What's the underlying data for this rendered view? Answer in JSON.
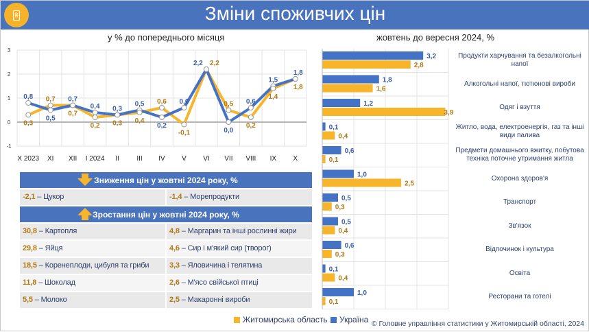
{
  "header": {
    "title": "Зміни споживчих цін",
    "icon": "price-tag-hryvnia-icon"
  },
  "colors": {
    "ukraine": "#4472c4",
    "zhytomyr": "#f7b52c",
    "header": "#4a73be"
  },
  "chart_data": [
    {
      "type": "line",
      "title": "у % до попереднього місяця",
      "ylim": [
        -1,
        3
      ],
      "yticks": [
        "3",
        "2",
        "1",
        "0",
        "-1"
      ],
      "categories": [
        "X 2023",
        "XI",
        "XII",
        "I 2024",
        "II",
        "III",
        "IV",
        "V",
        "VI",
        "VII",
        "VIII",
        "IX",
        "X"
      ],
      "series": [
        {
          "name": "Україна",
          "values": [
            0.8,
            0.5,
            0.7,
            0.4,
            0.3,
            0.5,
            0.2,
            0.6,
            2.2,
            0.0,
            0.6,
            1.5,
            1.8
          ],
          "labels": [
            "0,8",
            "0,5",
            "0,7",
            "0,4",
            "0,3",
            "0,5",
            "0,2",
            "0,6",
            "2,2",
            "0,0",
            "0,6",
            "1,5",
            "1,8"
          ]
        },
        {
          "name": "Житомирська область",
          "values": [
            0.3,
            0.7,
            0.7,
            0.2,
            0.3,
            0.4,
            0.6,
            -0.1,
            2.2,
            0.5,
            0.2,
            1.4,
            1.8
          ],
          "labels": [
            "0,3",
            "0,7",
            "0,7",
            "0,2",
            "0,3",
            "0,4",
            "0,6",
            "-0,1",
            "2,2",
            "0,5",
            "0,2",
            "1,4",
            "1,8"
          ]
        }
      ],
      "grid": true
    },
    {
      "type": "bar",
      "title": "жовтень до вересня 2024, %",
      "xlim": [
        0,
        4
      ],
      "categories": [
        "Продукти харчування та безалкогольні напої",
        "Алкогольні напої, тютюнові вироби",
        "Одяг і взуття",
        "Житло, вода, електроенергія, газ та інші види палива",
        "Предмети домашнього вжитку, побутова техніка поточне утримання житла",
        "Охорона здоров'я",
        "Транспорт",
        "Зв'язок",
        "Відпочинок і культура",
        "Освіта",
        "Ресторани та готелі"
      ],
      "series": [
        {
          "name": "Україна",
          "values": [
            3.2,
            1.8,
            1.2,
            0.1,
            0.6,
            1.0,
            0.5,
            0.5,
            0.6,
            0.1,
            1.0
          ],
          "labels": [
            "3,2",
            "1,8",
            "1,2",
            "0,1",
            "0,6",
            "1,0",
            "0,5",
            "0,5",
            "0,6",
            "0,1",
            "1,0"
          ]
        },
        {
          "name": "Житомирська область",
          "values": [
            2.8,
            1.6,
            3.9,
            0.4,
            0.1,
            2.5,
            0.3,
            0.4,
            0.3,
            0.4,
            0.1
          ],
          "labels": [
            "2,8",
            "1,6",
            "3,9",
            "0,4",
            "0,1",
            "2,5",
            "0,3",
            "0,4",
            "0,3",
            "0,4",
            "0,1"
          ]
        }
      ],
      "grid": true
    }
  ],
  "decrease": {
    "title": "Зниження цін у жовтні 2024 року, %",
    "items": [
      {
        "value": "-2,1",
        "name": " – Цукор"
      },
      {
        "value": "-1,4",
        "name": " – Морепродукти"
      }
    ]
  },
  "increase": {
    "title": "Зростання цін у жовтні 2024 року, %",
    "rows": [
      [
        {
          "value": "30,8",
          "name": " – Картопля"
        },
        {
          "value": "4,8",
          "name": " – Маргарин та інші рослинні жири"
        }
      ],
      [
        {
          "value": "29,8",
          "name": " – Яйця"
        },
        {
          "value": "4,6",
          "name": " – Сир і м'який сир (творог)"
        }
      ],
      [
        {
          "value": "18,5",
          "name": " – Коренеплоди, цибуля та гриби"
        },
        {
          "value": "3,3",
          "name": " – Яловичина і телятина"
        }
      ],
      [
        {
          "value": "11,8",
          "name": " – Шоколад"
        },
        {
          "value": "2,6",
          "name": " – М'ясо свійської птиці"
        }
      ],
      [
        {
          "value": "5,5",
          "name": " – Молоко"
        },
        {
          "value": "2,5",
          "name": " – Макаронні вироби"
        }
      ]
    ]
  },
  "legend": {
    "zhytomyr": "Житомирська область",
    "ukraine": "Україна"
  },
  "footer": {
    "copyright": "© Головне управління статистики у Житомирській області, 2024"
  }
}
